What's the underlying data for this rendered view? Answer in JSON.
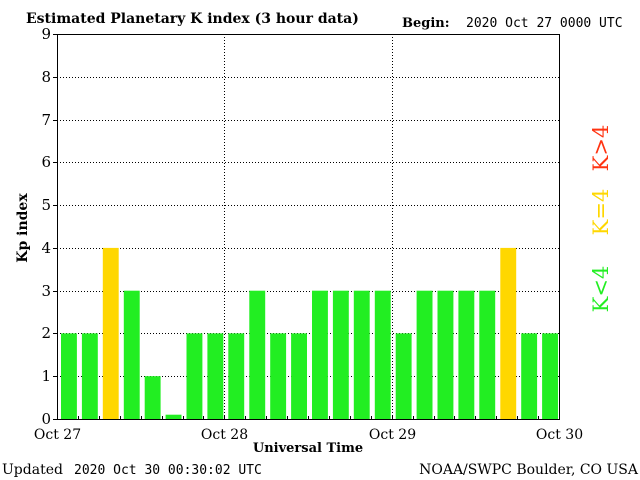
{
  "chart_data": {
    "type": "bar",
    "title": "Estimated Planetary K index (3 hour data)",
    "begin_label": "Begin:",
    "begin_value": "2020 Oct 27 0000 UTC",
    "xlabel": "Universal Time",
    "ylabel": "Kp index",
    "ylim": [
      0,
      9
    ],
    "yticks": [
      "0",
      "1",
      "2",
      "3",
      "4",
      "5",
      "6",
      "7",
      "8",
      "9"
    ],
    "day_labels": [
      "Oct 27",
      "Oct 28",
      "Oct 29",
      "Oct 30"
    ],
    "values": [
      2,
      2,
      4,
      3,
      1,
      0.1,
      2,
      2,
      2,
      3,
      2,
      2,
      3,
      3,
      3,
      3,
      2,
      3,
      3,
      3,
      3,
      4,
      2,
      2
    ],
    "grid": true,
    "legend": [
      {
        "label": "K<4",
        "color": "#22ee22"
      },
      {
        "label": "K=4",
        "color": "#ffd700"
      },
      {
        "label": "K>4",
        "color": "#ff3311"
      }
    ]
  },
  "footer": {
    "updated_label": "Updated",
    "updated_value": "2020 Oct 30 00:30:02 UTC",
    "credit": "NOAA/SWPC Boulder, CO USA"
  }
}
